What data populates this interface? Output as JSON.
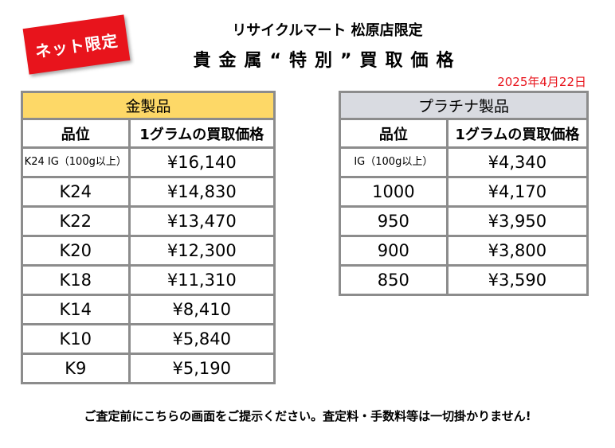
{
  "badge": {
    "label": "ネット限定",
    "color": "#e8141c"
  },
  "header": {
    "store": "リサイクルマート 松原店限定",
    "title": "貴金属“特別”買取価格",
    "date": "2025年4月22日"
  },
  "gold": {
    "heading": "金製品",
    "col1": "品位",
    "col2": "1グラムの買取価格",
    "rows": [
      {
        "grade": "K24 IG（100g以上）",
        "price": "¥16,140"
      },
      {
        "grade": "K24",
        "price": "¥14,830"
      },
      {
        "grade": "K22",
        "price": "¥13,470"
      },
      {
        "grade": "K20",
        "price": "¥12,300"
      },
      {
        "grade": "K18",
        "price": "¥11,310"
      },
      {
        "grade": "K14",
        "price": "¥8,410"
      },
      {
        "grade": "K10",
        "price": "¥5,840"
      },
      {
        "grade": "K9",
        "price": "¥5,190"
      }
    ]
  },
  "platinum": {
    "heading": "プラチナ製品",
    "col1": "品位",
    "col2": "1グラムの買取価格",
    "rows": [
      {
        "grade": "IG（100g以上）",
        "price": "¥4,340"
      },
      {
        "grade": "1000",
        "price": "¥4,170"
      },
      {
        "grade": "950",
        "price": "¥3,950"
      },
      {
        "grade": "900",
        "price": "¥3,800"
      },
      {
        "grade": "850",
        "price": "¥3,590"
      }
    ]
  },
  "footer": {
    "note": "ご査定前にこちらの画面をご提示ください。査定料・手数料等は一切掛かりません!"
  }
}
